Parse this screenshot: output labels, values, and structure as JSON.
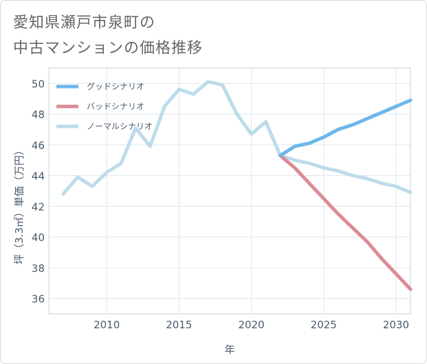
{
  "title": {
    "line1": "愛知県瀬戸市泉町の",
    "line2": "中古マンションの価格推移"
  },
  "chart_data": {
    "type": "line",
    "title": "愛知県瀬戸市泉町の中古マンションの価格推移",
    "xlabel": "年",
    "ylabel": "坪（3.3㎡）単価（万円）",
    "xlim": [
      2006,
      2031
    ],
    "ylim": [
      35,
      51
    ],
    "x_ticks": [
      2010,
      2015,
      2020,
      2025,
      2030
    ],
    "y_ticks": [
      36,
      38,
      40,
      42,
      44,
      46,
      48,
      50
    ],
    "grid": true,
    "legend_position": "top-left",
    "series": [
      {
        "name": "グッドシナリオ",
        "color": "#6cb6ec",
        "x": [
          2022,
          2023,
          2024,
          2025,
          2026,
          2027,
          2028,
          2029,
          2030,
          2031
        ],
        "values": [
          45.3,
          45.9,
          46.1,
          46.5,
          47.0,
          47.3,
          47.7,
          48.1,
          48.5,
          48.9
        ]
      },
      {
        "name": "バッドシナリオ",
        "color": "#db8b94",
        "x": [
          2022,
          2023,
          2024,
          2025,
          2026,
          2027,
          2028,
          2029,
          2030,
          2031
        ],
        "values": [
          45.3,
          44.5,
          43.5,
          42.5,
          41.5,
          40.6,
          39.7,
          38.6,
          37.6,
          36.6
        ]
      },
      {
        "name": "ノーマルシナリオ",
        "color": "#bcdcea",
        "x": [
          2007,
          2008,
          2009,
          2010,
          2011,
          2012,
          2013,
          2014,
          2015,
          2016,
          2017,
          2018,
          2019,
          2020,
          2021,
          2022,
          2023,
          2024,
          2025,
          2026,
          2027,
          2028,
          2029,
          2030,
          2031
        ],
        "values": [
          42.8,
          43.9,
          43.3,
          44.2,
          44.8,
          47.1,
          45.9,
          48.5,
          49.6,
          49.3,
          50.1,
          49.9,
          48.0,
          46.7,
          47.5,
          45.3,
          45.0,
          44.8,
          44.5,
          44.3,
          44.0,
          43.8,
          43.5,
          43.3,
          42.9
        ]
      }
    ]
  }
}
